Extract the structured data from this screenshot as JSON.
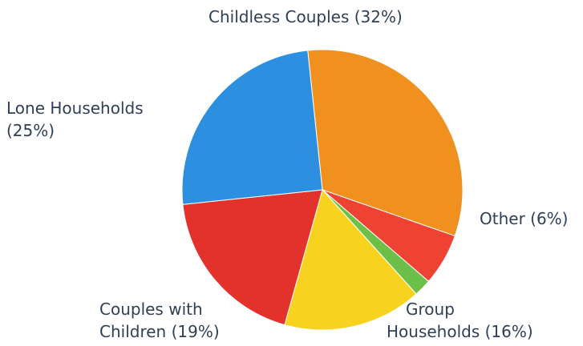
{
  "chart_data": {
    "type": "pie",
    "categories": [
      "Childless Couples",
      "Other",
      "Green segment",
      "Group Households",
      "Couples with Children",
      "Lone Households"
    ],
    "values": [
      32,
      6,
      2,
      16,
      19,
      25
    ],
    "colors": [
      "#F0901F",
      "#EE4233",
      "#6CC04A",
      "#F7D320",
      "#E3312C",
      "#2D8FE0"
    ],
    "labels": [
      {
        "line1": "Childless Couples (32%)",
        "line2": ""
      },
      {
        "line1": "Other (6%)",
        "line2": ""
      },
      {
        "line1": "",
        "line2": ""
      },
      {
        "line1": "Group",
        "line2": "Households (16%)"
      },
      {
        "line1": "Couples with",
        "line2": "Children (19%)"
      },
      {
        "line1": "Lone Households",
        "line2": "(25%)"
      }
    ],
    "start_angle_deg": -96,
    "direction": "clockwise",
    "title": ""
  }
}
